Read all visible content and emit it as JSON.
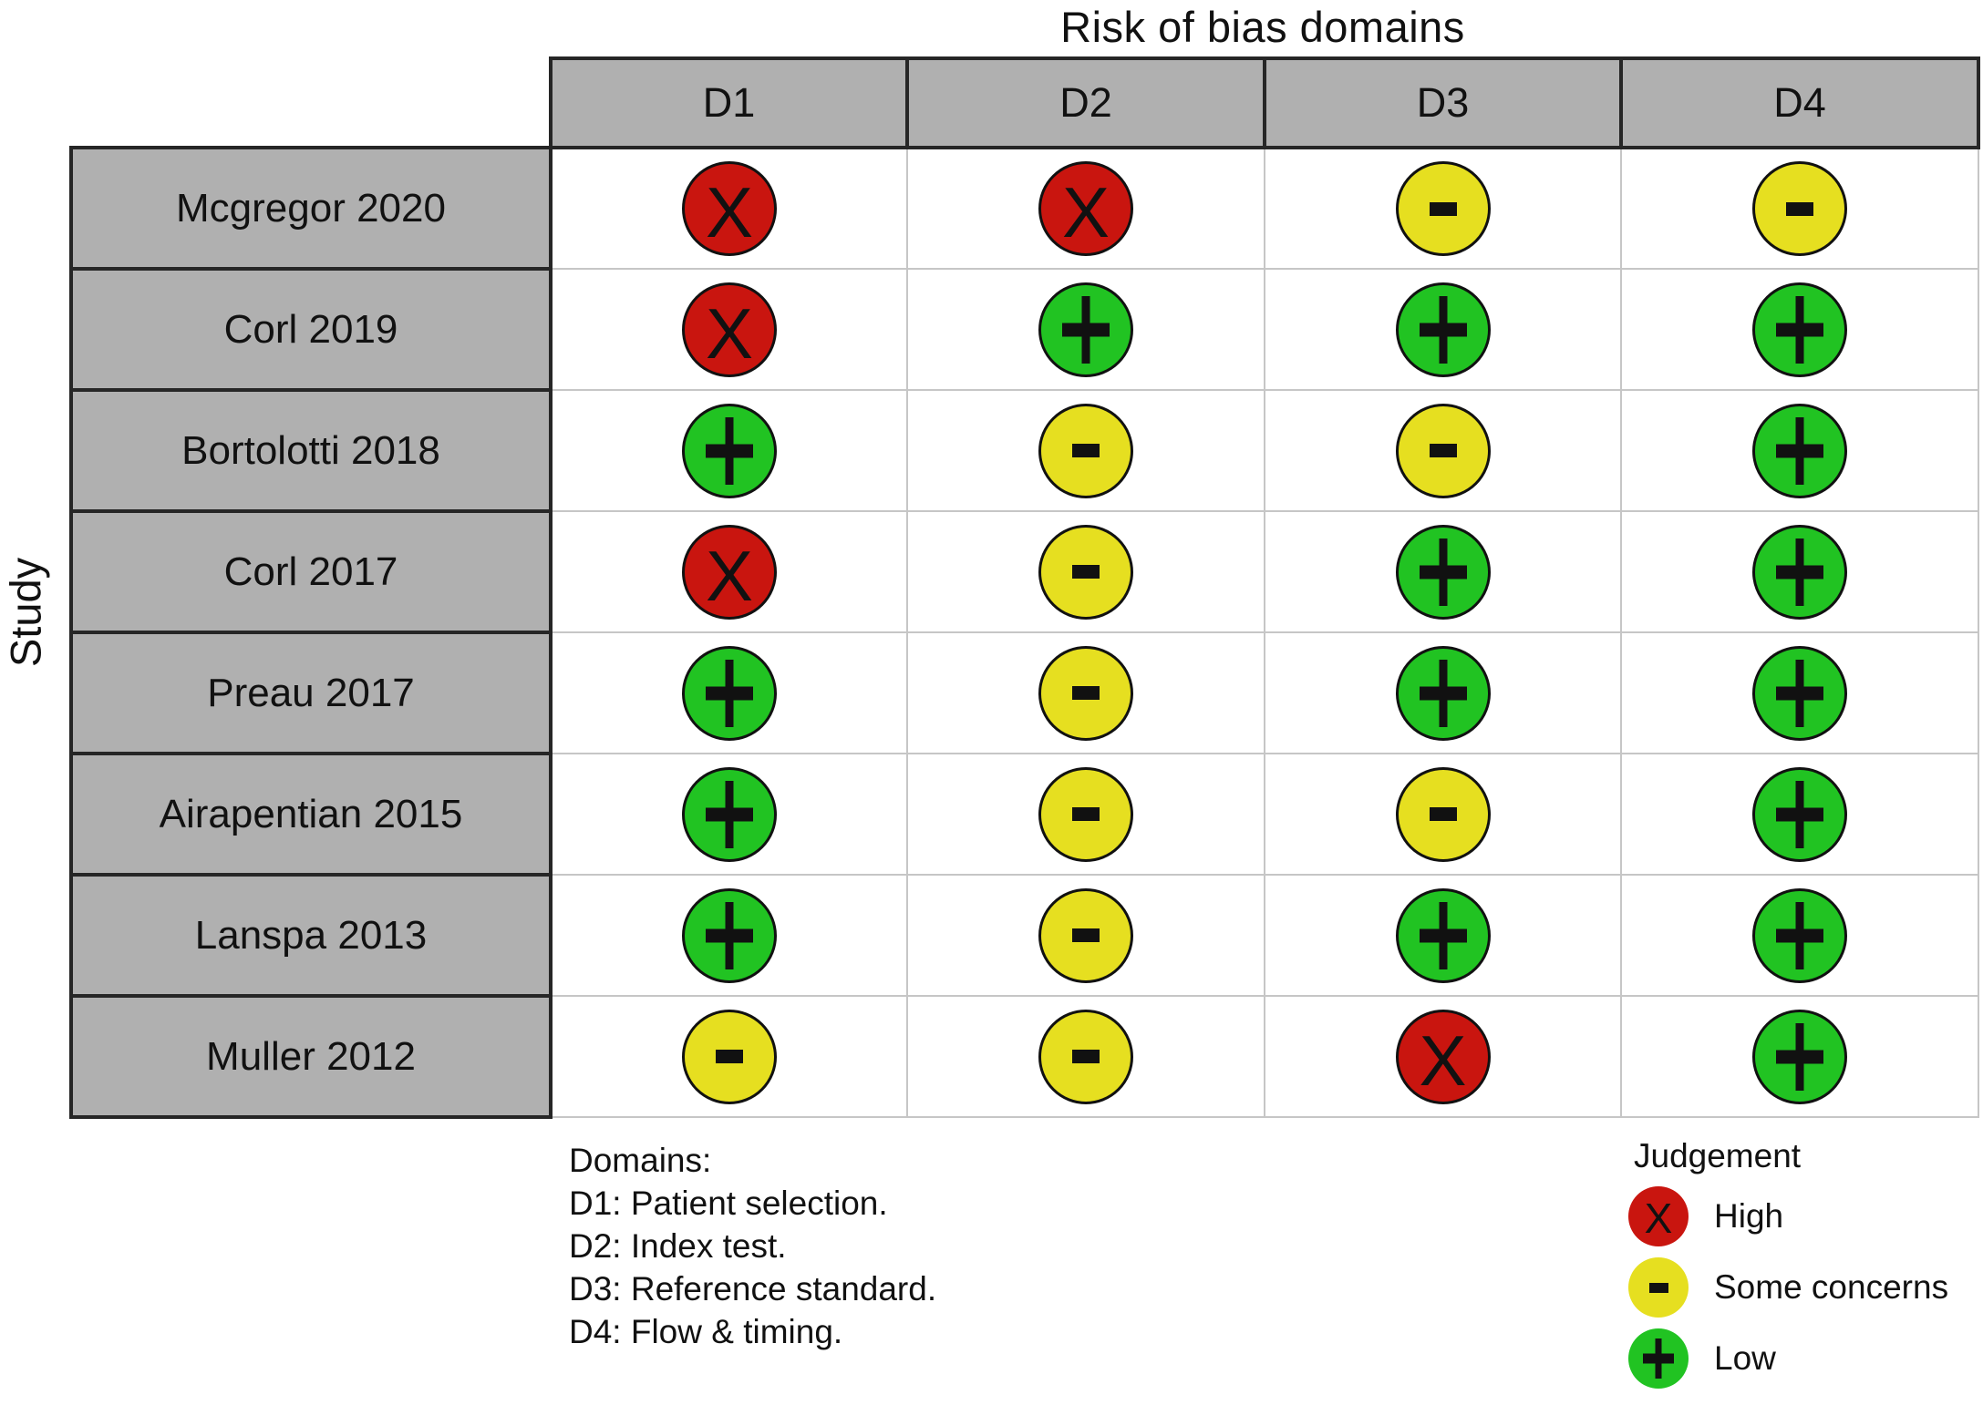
{
  "chart_data": {
    "type": "table",
    "title": "Risk of bias domains",
    "ylabel": "Study",
    "columns": [
      "D1",
      "D2",
      "D3",
      "D4"
    ],
    "rows": [
      {
        "study": "Mcgregor 2020",
        "values": [
          "High",
          "High",
          "Some concerns",
          "Some concerns"
        ]
      },
      {
        "study": "Corl 2019",
        "values": [
          "High",
          "Low",
          "Low",
          "Low"
        ]
      },
      {
        "study": "Bortolotti 2018",
        "values": [
          "Low",
          "Some concerns",
          "Some concerns",
          "Low"
        ]
      },
      {
        "study": "Corl 2017",
        "values": [
          "High",
          "Some concerns",
          "Low",
          "Low"
        ]
      },
      {
        "study": "Preau 2017",
        "values": [
          "Low",
          "Some concerns",
          "Low",
          "Low"
        ]
      },
      {
        "study": "Airapentian 2015",
        "values": [
          "Low",
          "Some concerns",
          "Some concerns",
          "Low"
        ]
      },
      {
        "study": "Lanspa 2013",
        "values": [
          "Low",
          "Some concerns",
          "Low",
          "Low"
        ]
      },
      {
        "study": "Muller 2012",
        "values": [
          "Some concerns",
          "Some concerns",
          "High",
          "Low"
        ]
      }
    ],
    "legend_position": "bottom-right",
    "grid": true
  },
  "judgements": {
    "High": {
      "symbol": "X",
      "color": "#c9150f",
      "slug": "high"
    },
    "Some concerns": {
      "symbol": "-",
      "color": "#e6df20",
      "slug": "some-concerns"
    },
    "Low": {
      "symbol": "+",
      "color": "#21c322",
      "slug": "low"
    }
  },
  "legend": {
    "title": "Judgement",
    "items": [
      "High",
      "Some concerns",
      "Low"
    ]
  },
  "notes": {
    "heading": "Domains:",
    "items": [
      "D1: Patient selection.",
      "D2: Index test.",
      "D3: Reference standard.",
      "D4: Flow & timing."
    ]
  },
  "colors": {
    "header_fill": "#b0b0b0",
    "grid_dark": "#262626",
    "grid_light": "#c6c6c6",
    "symbol_ink": "#111111",
    "background": "#ffffff"
  }
}
